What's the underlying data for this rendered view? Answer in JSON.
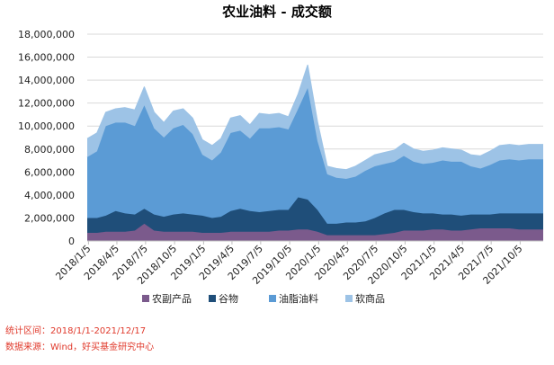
{
  "chart_data": {
    "type": "area",
    "stacked": true,
    "title": "农业油料 - 成交额",
    "xlabel": "",
    "ylabel": "",
    "ylim": [
      0,
      18000000
    ],
    "yticks": [
      0,
      2000000,
      4000000,
      6000000,
      8000000,
      10000000,
      12000000,
      14000000,
      16000000,
      18000000
    ],
    "ytick_labels": [
      "0",
      "2,000,000",
      "4,000,000",
      "6,000,000",
      "8,000,000",
      "10,000,000",
      "12,000,000",
      "14,000,000",
      "16,000,000",
      "18,000,000"
    ],
    "xlim": [
      "2018-01-01",
      "2021-12-17"
    ],
    "xtick_labels": [
      "2018/1/5",
      "2018/4/5",
      "2018/7/5",
      "2018/10/5",
      "2019/1/5",
      "2019/4/5",
      "2019/7/5",
      "2019/10/5",
      "2020/1/5",
      "2020/4/5",
      "2020/7/5",
      "2020/10/5",
      "2021/1/5",
      "2021/4/5",
      "2021/7/5",
      "2021/10/5"
    ],
    "xtick_dates": [
      "2018-01-05",
      "2018-04-05",
      "2018-07-05",
      "2018-10-05",
      "2019-01-05",
      "2019-04-05",
      "2019-07-05",
      "2019-10-05",
      "2020-01-05",
      "2020-04-05",
      "2020-07-05",
      "2020-10-05",
      "2021-01-05",
      "2021-04-05",
      "2021-07-05",
      "2021-10-05"
    ],
    "grid": "horizontal",
    "legend": "bottom",
    "x": [
      "2018-01-01",
      "2018-02-01",
      "2018-03-01",
      "2018-04-01",
      "2018-05-01",
      "2018-06-01",
      "2018-07-01",
      "2018-08-01",
      "2018-09-01",
      "2018-10-01",
      "2018-11-01",
      "2018-12-01",
      "2019-01-01",
      "2019-02-01",
      "2019-03-01",
      "2019-04-01",
      "2019-05-01",
      "2019-06-01",
      "2019-07-01",
      "2019-08-01",
      "2019-09-01",
      "2019-10-01",
      "2019-11-01",
      "2019-12-01",
      "2020-01-01",
      "2020-02-01",
      "2020-03-01",
      "2020-04-01",
      "2020-05-01",
      "2020-06-01",
      "2020-07-01",
      "2020-08-01",
      "2020-09-01",
      "2020-10-01",
      "2020-11-01",
      "2020-12-01",
      "2021-01-01",
      "2021-02-01",
      "2021-03-01",
      "2021-04-01",
      "2021-05-01",
      "2021-06-01",
      "2021-07-01",
      "2021-08-01",
      "2021-09-01",
      "2021-10-01",
      "2021-11-01",
      "2021-12-17"
    ],
    "series": [
      {
        "name": "农副产品",
        "color": "#7b5a8c",
        "values": [
          700000,
          700000,
          800000,
          800000,
          800000,
          900000,
          1500000,
          900000,
          800000,
          800000,
          800000,
          800000,
          700000,
          700000,
          700000,
          800000,
          800000,
          800000,
          800000,
          800000,
          900000,
          900000,
          1000000,
          1000000,
          800000,
          500000,
          500000,
          500000,
          500000,
          500000,
          500000,
          600000,
          700000,
          900000,
          900000,
          900000,
          1000000,
          1000000,
          900000,
          900000,
          1000000,
          1100000,
          1100000,
          1100000,
          1100000,
          1000000,
          1000000,
          1000000
        ]
      },
      {
        "name": "谷物",
        "color": "#1f4e79",
        "values": [
          1300000,
          1300000,
          1400000,
          1800000,
          1600000,
          1400000,
          1300000,
          1400000,
          1300000,
          1500000,
          1600000,
          1500000,
          1500000,
          1300000,
          1400000,
          1800000,
          2000000,
          1800000,
          1700000,
          1800000,
          1800000,
          1800000,
          2800000,
          2600000,
          1900000,
          1000000,
          1000000,
          1100000,
          1100000,
          1200000,
          1500000,
          1800000,
          2000000,
          1800000,
          1600000,
          1500000,
          1400000,
          1300000,
          1400000,
          1300000,
          1300000,
          1200000,
          1200000,
          1300000,
          1300000,
          1400000,
          1400000,
          1400000
        ]
      },
      {
        "name": "油脂油料",
        "color": "#5b9bd5",
        "values": [
          5300000,
          5800000,
          7800000,
          7700000,
          7900000,
          7700000,
          9000000,
          7500000,
          6900000,
          7500000,
          7700000,
          7000000,
          5300000,
          5000000,
          5600000,
          6800000,
          6800000,
          6300000,
          7300000,
          7200000,
          7200000,
          7000000,
          7700000,
          9700000,
          6000000,
          4300000,
          4000000,
          3800000,
          4000000,
          4400000,
          4500000,
          4300000,
          4200000,
          4700000,
          4400000,
          4300000,
          4400000,
          4700000,
          4600000,
          4700000,
          4200000,
          4000000,
          4300000,
          4600000,
          4700000,
          4600000,
          4700000,
          4700000
        ]
      },
      {
        "name": "软商品",
        "color": "#9dc3e6",
        "values": [
          1600000,
          1600000,
          1200000,
          1200000,
          1300000,
          1400000,
          1600000,
          1400000,
          1300000,
          1500000,
          1400000,
          1400000,
          1300000,
          1300000,
          1200000,
          1300000,
          1300000,
          1200000,
          1300000,
          1200000,
          1200000,
          1100000,
          1300000,
          2000000,
          1700000,
          700000,
          800000,
          800000,
          900000,
          900000,
          1000000,
          1000000,
          1000000,
          1100000,
          1100000,
          1100000,
          1100000,
          1100000,
          1100000,
          1000000,
          1000000,
          1100000,
          1200000,
          1300000,
          1300000,
          1300000,
          1300000,
          1300000
        ]
      }
    ]
  },
  "notes": {
    "period": "统计区间：2018/1/1-2021/12/17",
    "source": "数据来源：Wind，好买基金研究中心"
  }
}
